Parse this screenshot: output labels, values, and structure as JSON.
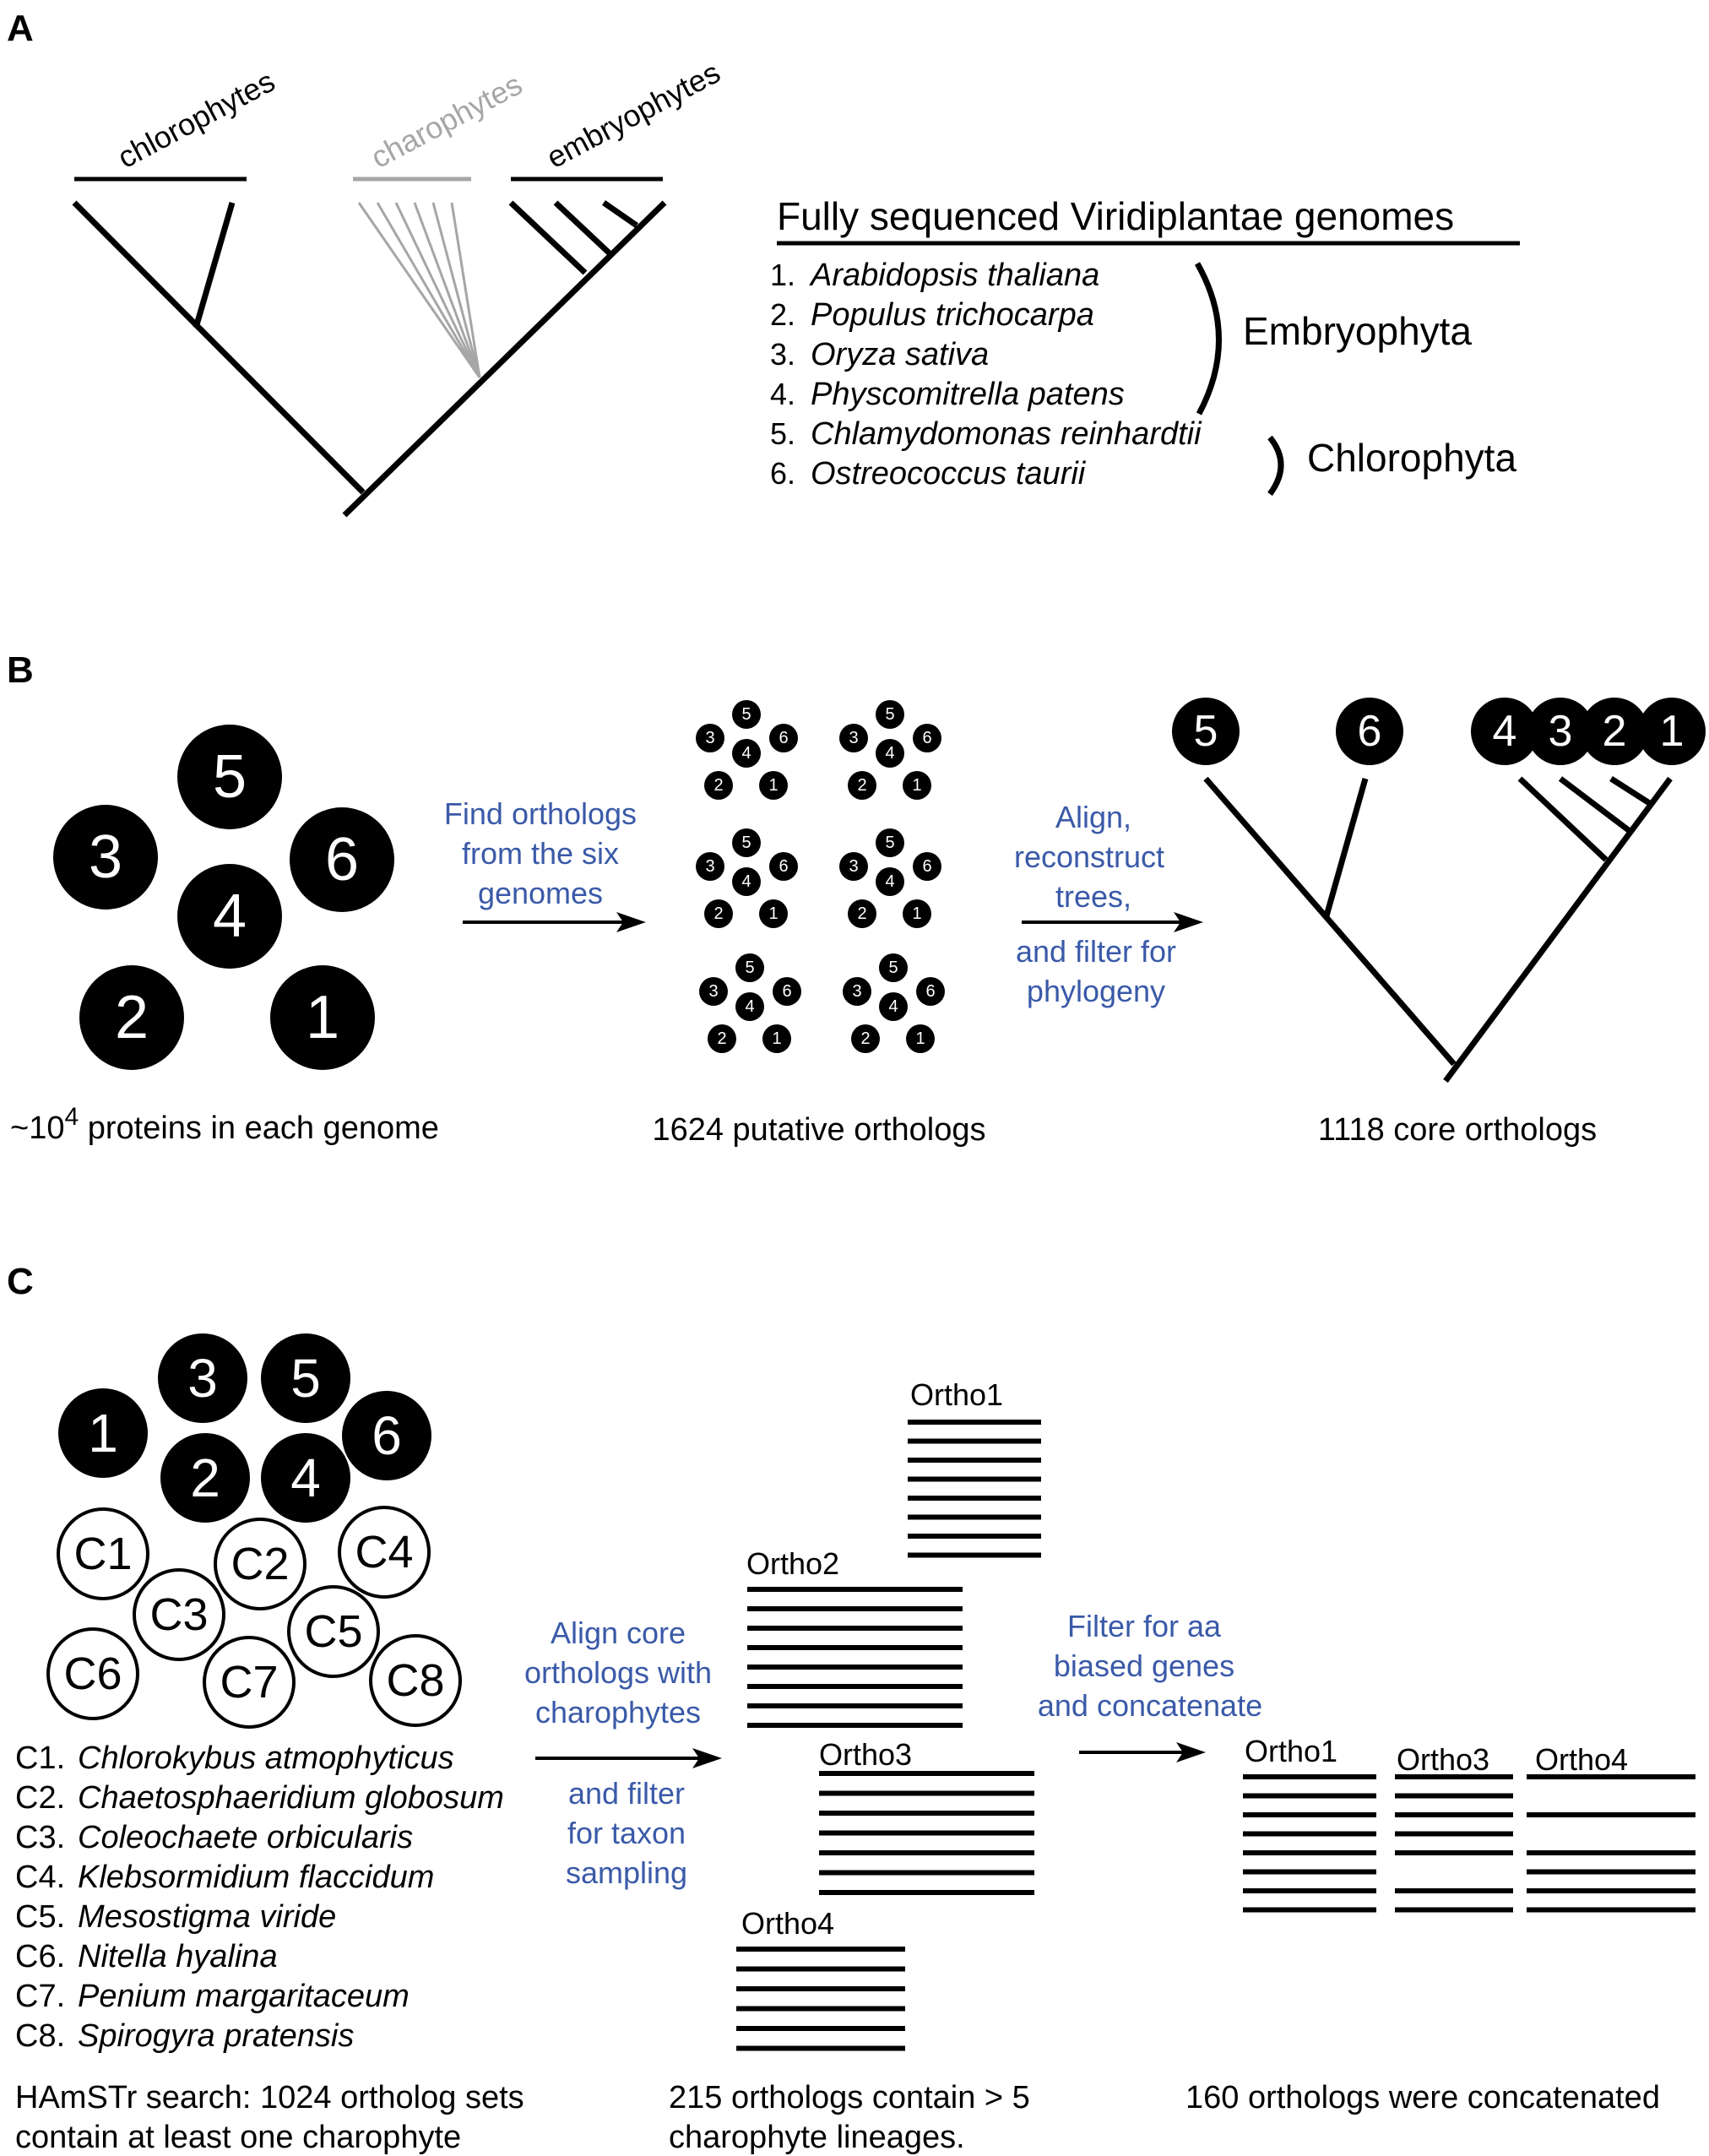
{
  "panelA": {
    "label": "A",
    "clade_chlorophytes": "chlorophytes",
    "clade_charophytes": "charophytes",
    "clade_embryophytes": "embryophytes",
    "genome_title": "Fully sequenced Viridiplantae genomes",
    "genomes": [
      {
        "num": "1.",
        "name": "Arabidopsis thaliana"
      },
      {
        "num": "2.",
        "name": "Populus trichocarpa"
      },
      {
        "num": "3.",
        "name": "Oryza sativa"
      },
      {
        "num": "4.",
        "name": "Physcomitrella patens"
      },
      {
        "num": "5.",
        "name": "Chlamydomonas reinhardtii"
      },
      {
        "num": "6.",
        "name": "Ostreococcus taurii"
      }
    ],
    "group_embryophyta": "Embryophyta",
    "group_chlorophyta": "Chlorophyta",
    "colors": {
      "charophytes": "#a6a6a6"
    }
  },
  "panelB": {
    "label": "B",
    "genome_numbers": [
      "1",
      "2",
      "3",
      "4",
      "5",
      "6"
    ],
    "step1": [
      "Find orthologs",
      "from the six",
      "genomes"
    ],
    "step2": [
      "Align,",
      "reconstruct",
      "trees,",
      "and filter for",
      "phylogeny"
    ],
    "caption1_prefix": "~10",
    "caption1_sup": "4",
    "caption1_suffix": " proteins in each genome",
    "caption2": "1624 putative orthologs",
    "caption3": "1118 core orthologs",
    "colors": {
      "step_text": "#3a5aa8"
    }
  },
  "panelC": {
    "label": "C",
    "genome_numbers": [
      "1",
      "2",
      "3",
      "4",
      "5",
      "6"
    ],
    "charophyte_codes": [
      "C1",
      "C2",
      "C3",
      "C4",
      "C5",
      "C6",
      "C7",
      "C8"
    ],
    "species": [
      {
        "code": "C1.",
        "name": "Chlorokybus atmophyticus"
      },
      {
        "code": "C2.",
        "name": "Chaetosphaeridium globosum"
      },
      {
        "code": "C3.",
        "name": "Coleochaete orbicularis"
      },
      {
        "code": "C4.",
        "name": "Klebsormidium flaccidum"
      },
      {
        "code": "C5.",
        "name": "Mesostigma viride"
      },
      {
        "code": "C6.",
        "name": "Nitella hyalina"
      },
      {
        "code": "C7.",
        "name": "Penium margaritaceum"
      },
      {
        "code": "C8.",
        "name": "Spirogyra pratensis"
      }
    ],
    "step1": [
      "Align core",
      "orthologs with",
      "charophytes"
    ],
    "step1b": [
      "and filter",
      "for taxon",
      "sampling"
    ],
    "step2": [
      "Filter for aa",
      "biased genes",
      "and concatenate"
    ],
    "ortho_labels": [
      "Ortho1",
      "Ortho2",
      "Ortho3",
      "Ortho4"
    ],
    "concat_labels": [
      "Ortho1",
      "Ortho3",
      "Ortho4"
    ],
    "caption1": [
      "HAmSTr search: 1024 ortholog sets",
      "contain at least one charophyte"
    ],
    "caption2": [
      "215 orthologs contain > 5",
      "charophyte lineages."
    ],
    "caption3": "160 orthologs were concatenated"
  }
}
